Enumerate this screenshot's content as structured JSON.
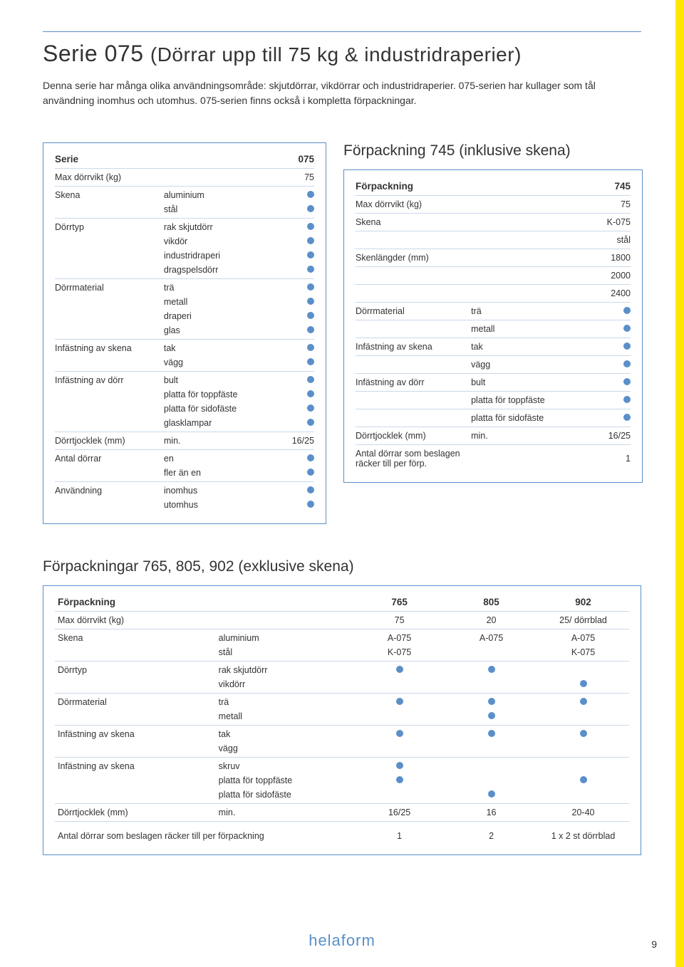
{
  "colors": {
    "accent": "#5a8fc9",
    "yellow": "#ffe600",
    "text": "#333333",
    "rule": "#c9d8ea",
    "bg": "#ffffff"
  },
  "title_main": "Serie 075",
  "title_sub": "(Dörrar upp till 75 kg & industridraperier)",
  "intro": "Denna serie har många olika användningsområde: skjutdörrar, vikdörrar och industridraperier. 075-serien har kullager som tål användning inomhus och utomhus. 075-serien finns också i kompletta förpackningar.",
  "section1_title": "Förpackning 745 (inklusive skena)",
  "serie_box": {
    "header": {
      "label": "Serie",
      "value": "075"
    },
    "rows": [
      {
        "label": "Max dörrvikt  (kg)",
        "sub": "",
        "value": "75",
        "dot": false,
        "rule": true
      },
      {
        "label": "Skena",
        "sub": "aluminium",
        "dot": true
      },
      {
        "label": "",
        "sub": "stål",
        "dot": true,
        "rule": true
      },
      {
        "label": "Dörrtyp",
        "sub": "rak skjutdörr",
        "dot": true
      },
      {
        "label": "",
        "sub": "vikdör",
        "dot": true
      },
      {
        "label": "",
        "sub": "industridraperi",
        "dot": true
      },
      {
        "label": "",
        "sub": "dragspelsdörr",
        "dot": true,
        "rule": true
      },
      {
        "label": "Dörrmaterial",
        "sub": "trä",
        "dot": true
      },
      {
        "label": "",
        "sub": "metall",
        "dot": true
      },
      {
        "label": "",
        "sub": "draperi",
        "dot": true
      },
      {
        "label": "",
        "sub": "glas",
        "dot": true,
        "rule": true
      },
      {
        "label": "Infästning av skena",
        "sub": "tak",
        "dot": true
      },
      {
        "label": "",
        "sub": "vägg",
        "dot": true,
        "rule": true
      },
      {
        "label": "Infästning av dörr",
        "sub": "bult",
        "dot": true
      },
      {
        "label": "",
        "sub": "platta för toppfäste",
        "dot": true
      },
      {
        "label": "",
        "sub": "platta för sidofäste",
        "dot": true
      },
      {
        "label": "",
        "sub": "glasklampar",
        "dot": true,
        "rule": true
      },
      {
        "label": "Dörrtjocklek (mm)",
        "sub": "min.",
        "value": "16/25",
        "dot": false,
        "rule": true
      },
      {
        "label": "Antal dörrar",
        "sub": "en",
        "dot": true
      },
      {
        "label": "",
        "sub": "fler än en",
        "dot": true,
        "rule": true
      },
      {
        "label": "Användning",
        "sub": "inomhus",
        "dot": true
      },
      {
        "label": "",
        "sub": "utomhus",
        "dot": true
      }
    ]
  },
  "pack_box": {
    "header": {
      "label": "Förpackning",
      "value": "745"
    },
    "rows": [
      {
        "label": "Max dörrvikt (kg)",
        "sub": "",
        "value": "75",
        "dot": false,
        "rule": true
      },
      {
        "label": "Skena",
        "sub": "",
        "value": "K-075",
        "dot": false,
        "rule": true
      },
      {
        "label": "",
        "sub": "",
        "value": "stål",
        "dot": false,
        "rule": true
      },
      {
        "label": "Skenlängder (mm)",
        "sub": "",
        "value": "1800",
        "dot": false,
        "rule": true
      },
      {
        "label": "",
        "sub": "",
        "value": "2000",
        "dot": false,
        "rule": true
      },
      {
        "label": "",
        "sub": "",
        "value": "2400",
        "dot": false,
        "rule": true
      },
      {
        "label": "Dörrmaterial",
        "sub": "trä",
        "dot": true,
        "rule": true
      },
      {
        "label": "",
        "sub": "metall",
        "dot": true,
        "rule": true
      },
      {
        "label": "Infästning av skena",
        "sub": "tak",
        "dot": true,
        "rule": true
      },
      {
        "label": "",
        "sub": "vägg",
        "dot": true,
        "rule": true
      },
      {
        "label": "Infästning av dörr",
        "sub": "bult",
        "dot": true,
        "rule": true
      },
      {
        "label": "",
        "sub": "platta för toppfäste",
        "dot": true,
        "rule": true
      },
      {
        "label": "",
        "sub": "platta för sidofäste",
        "dot": true,
        "rule": true
      },
      {
        "label": "Dörrtjocklek (mm)",
        "sub": "min.",
        "value": "16/25",
        "dot": false,
        "rule": true
      },
      {
        "label": "Antal dörrar som beslagen räcker till per förp.",
        "sub": "",
        "value": "1",
        "dot": false
      }
    ]
  },
  "section2_title": "Förpackningar 765, 805, 902 (exklusive skena)",
  "pack3": {
    "header": {
      "label": "Förpackning",
      "c1": "765",
      "c2": "805",
      "c3": "902"
    },
    "rows": [
      {
        "l1": "Max dörrvikt  (kg)",
        "l2": "",
        "v1": "75",
        "v2": "20",
        "v3": "25/ dörrblad",
        "rule": true
      },
      {
        "l1": "Skena",
        "l2": "aluminium",
        "v1": "A-075",
        "v2": "A-075",
        "v3": "A-075"
      },
      {
        "l1": "",
        "l2": "stål",
        "v1": "K-075",
        "v2": "",
        "v3": "K-075",
        "rule": true
      },
      {
        "l1": "Dörrtyp",
        "l2": "rak skjutdörr",
        "d1": true,
        "d2": true,
        "d3": false
      },
      {
        "l1": "",
        "l2": "vikdörr",
        "d1": false,
        "d2": false,
        "d3": true,
        "rule": true
      },
      {
        "l1": "Dörrmaterial",
        "l2": "trä",
        "d1": true,
        "d2": true,
        "d3": true
      },
      {
        "l1": "",
        "l2": "metall",
        "d1": false,
        "d2": true,
        "d3": false,
        "rule": true
      },
      {
        "l1": "Infästning av skena",
        "l2": "tak",
        "d1": true,
        "d2": true,
        "d3": true
      },
      {
        "l1": "",
        "l2": "vägg",
        "rule": true
      },
      {
        "l1": "Infästning av skena",
        "l2": "skruv",
        "d1": true,
        "d2": false,
        "d3": false
      },
      {
        "l1": "",
        "l2": "platta för toppfäste",
        "d1": true,
        "d2": false,
        "d3": true
      },
      {
        "l1": "",
        "l2": "platta för sidofäste",
        "d1": false,
        "d2": true,
        "d3": false,
        "rule": true
      },
      {
        "l1": "Dörrtjocklek (mm)",
        "l2": "min.",
        "v1": "16/25",
        "v2": "16",
        "v3": "20-40",
        "rule": true
      }
    ],
    "footer_row": {
      "label": "Antal dörrar som beslagen räcker till per förpackning",
      "v1": "1",
      "v2": "2",
      "v3": "1 x 2 st dörrblad"
    }
  },
  "brand": "helaform",
  "page_number": "9"
}
